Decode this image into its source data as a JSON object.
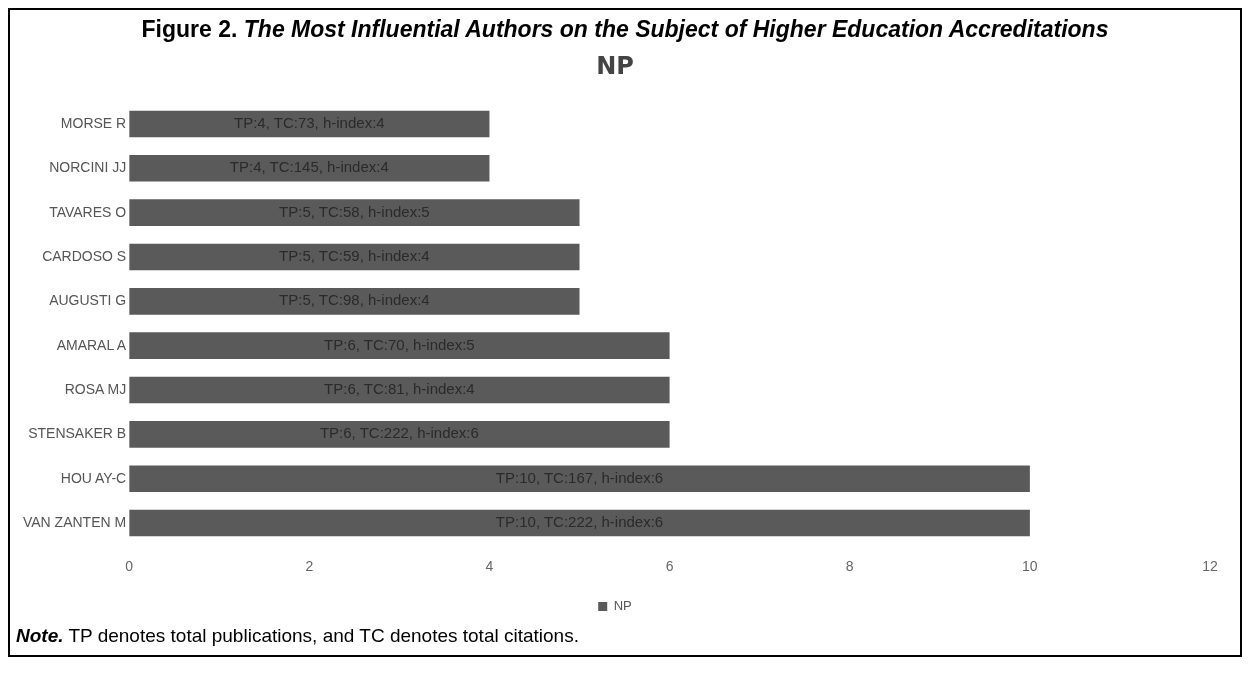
{
  "chart_data": {
    "type": "bar",
    "orientation": "horizontal",
    "title": "Figure 2. The Most Influential Authors on the Subject of Higher Education Accreditations",
    "subtitle": "NP",
    "categories": [
      "MORSE R",
      "NORCINI JJ",
      "TAVARES O",
      "CARDOSO S",
      "AUGUSTI G",
      "AMARAL A",
      "ROSA MJ",
      "STENSAKER B",
      "HOU AY-C",
      "VAN ZANTEN M"
    ],
    "series": [
      {
        "name": "NP",
        "color": "#5a5a5a",
        "values": [
          4,
          4,
          5,
          5,
          5,
          6,
          6,
          6,
          10,
          10
        ],
        "value_labels": [
          "TP:4, TC:73, h-index:4",
          "TP:4, TC:145, h-index:4",
          "TP:5, TC:58, h-index:5",
          "TP:5, TC:59, h-index:4",
          "TP:5, TC:98, h-index:4",
          "TP:6, TC:70, h-index:5",
          "TP:6, TC:81, h-index:4",
          "TP:6, TC:222, h-index:6",
          "TP:10, TC:167, h-index:6",
          "TP:10, TC:222, h-index:6"
        ]
      }
    ],
    "xlim": [
      0,
      12
    ],
    "xticks": [
      0,
      2,
      4,
      6,
      8,
      10,
      12
    ],
    "grid": false,
    "legend": "bottom",
    "annotations": [
      "Note. TP denotes total publications, and TC denotes total citations."
    ]
  }
}
